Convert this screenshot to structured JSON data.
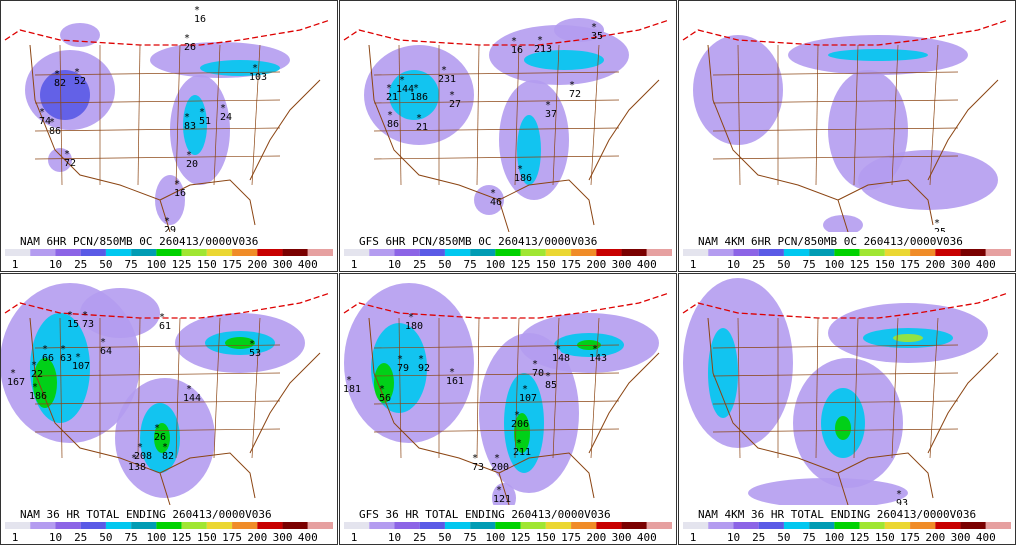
{
  "panels": [
    {
      "title": "NAM 6HR PCN/850MB 0C 260413/0000V036",
      "points": [
        16,
        26,
        82,
        52,
        74,
        86,
        103,
        83,
        51,
        24,
        20,
        16,
        29,
        72
      ]
    },
    {
      "title": "GFS 6HR PCN/850MB 0C 260413/0000V036",
      "points": [
        35,
        16,
        213,
        231,
        144,
        186,
        27,
        21,
        21,
        86,
        72,
        37,
        186,
        46
      ]
    },
    {
      "title": "NAM 4KM 6HR PCN/850MB 0C 260413/0000V036",
      "points": [
        25
      ]
    },
    {
      "title": "NAM 36 HR TOTAL ENDING 260413/0000V036",
      "points": [
        61,
        73,
        15,
        66,
        63,
        107,
        64,
        167,
        22,
        186,
        144,
        53,
        138,
        208,
        82,
        26
      ]
    },
    {
      "title": "GFS 36 HR TOTAL ENDING 260413/0000V036",
      "points": [
        180,
        181,
        79,
        92,
        161,
        70,
        85,
        148,
        143,
        107,
        206,
        211,
        73,
        200,
        121,
        56
      ]
    },
    {
      "title": "NAM 4KM 36 HR TOTAL ENDING 260413/0000V036",
      "points": [
        93
      ]
    }
  ],
  "legend": {
    "labels": [
      1,
      10,
      25,
      50,
      75,
      100,
      125,
      150,
      175,
      200,
      300,
      400
    ],
    "colors": [
      "#e4e4ee",
      "#b49cf0",
      "#8c64e6",
      "#5a5ae6",
      "#00c8f0",
      "#009cb4",
      "#00d200",
      "#a0e632",
      "#ebd732",
      "#f08c28",
      "#c80000",
      "#7a0000",
      "#e6a0a0"
    ]
  }
}
